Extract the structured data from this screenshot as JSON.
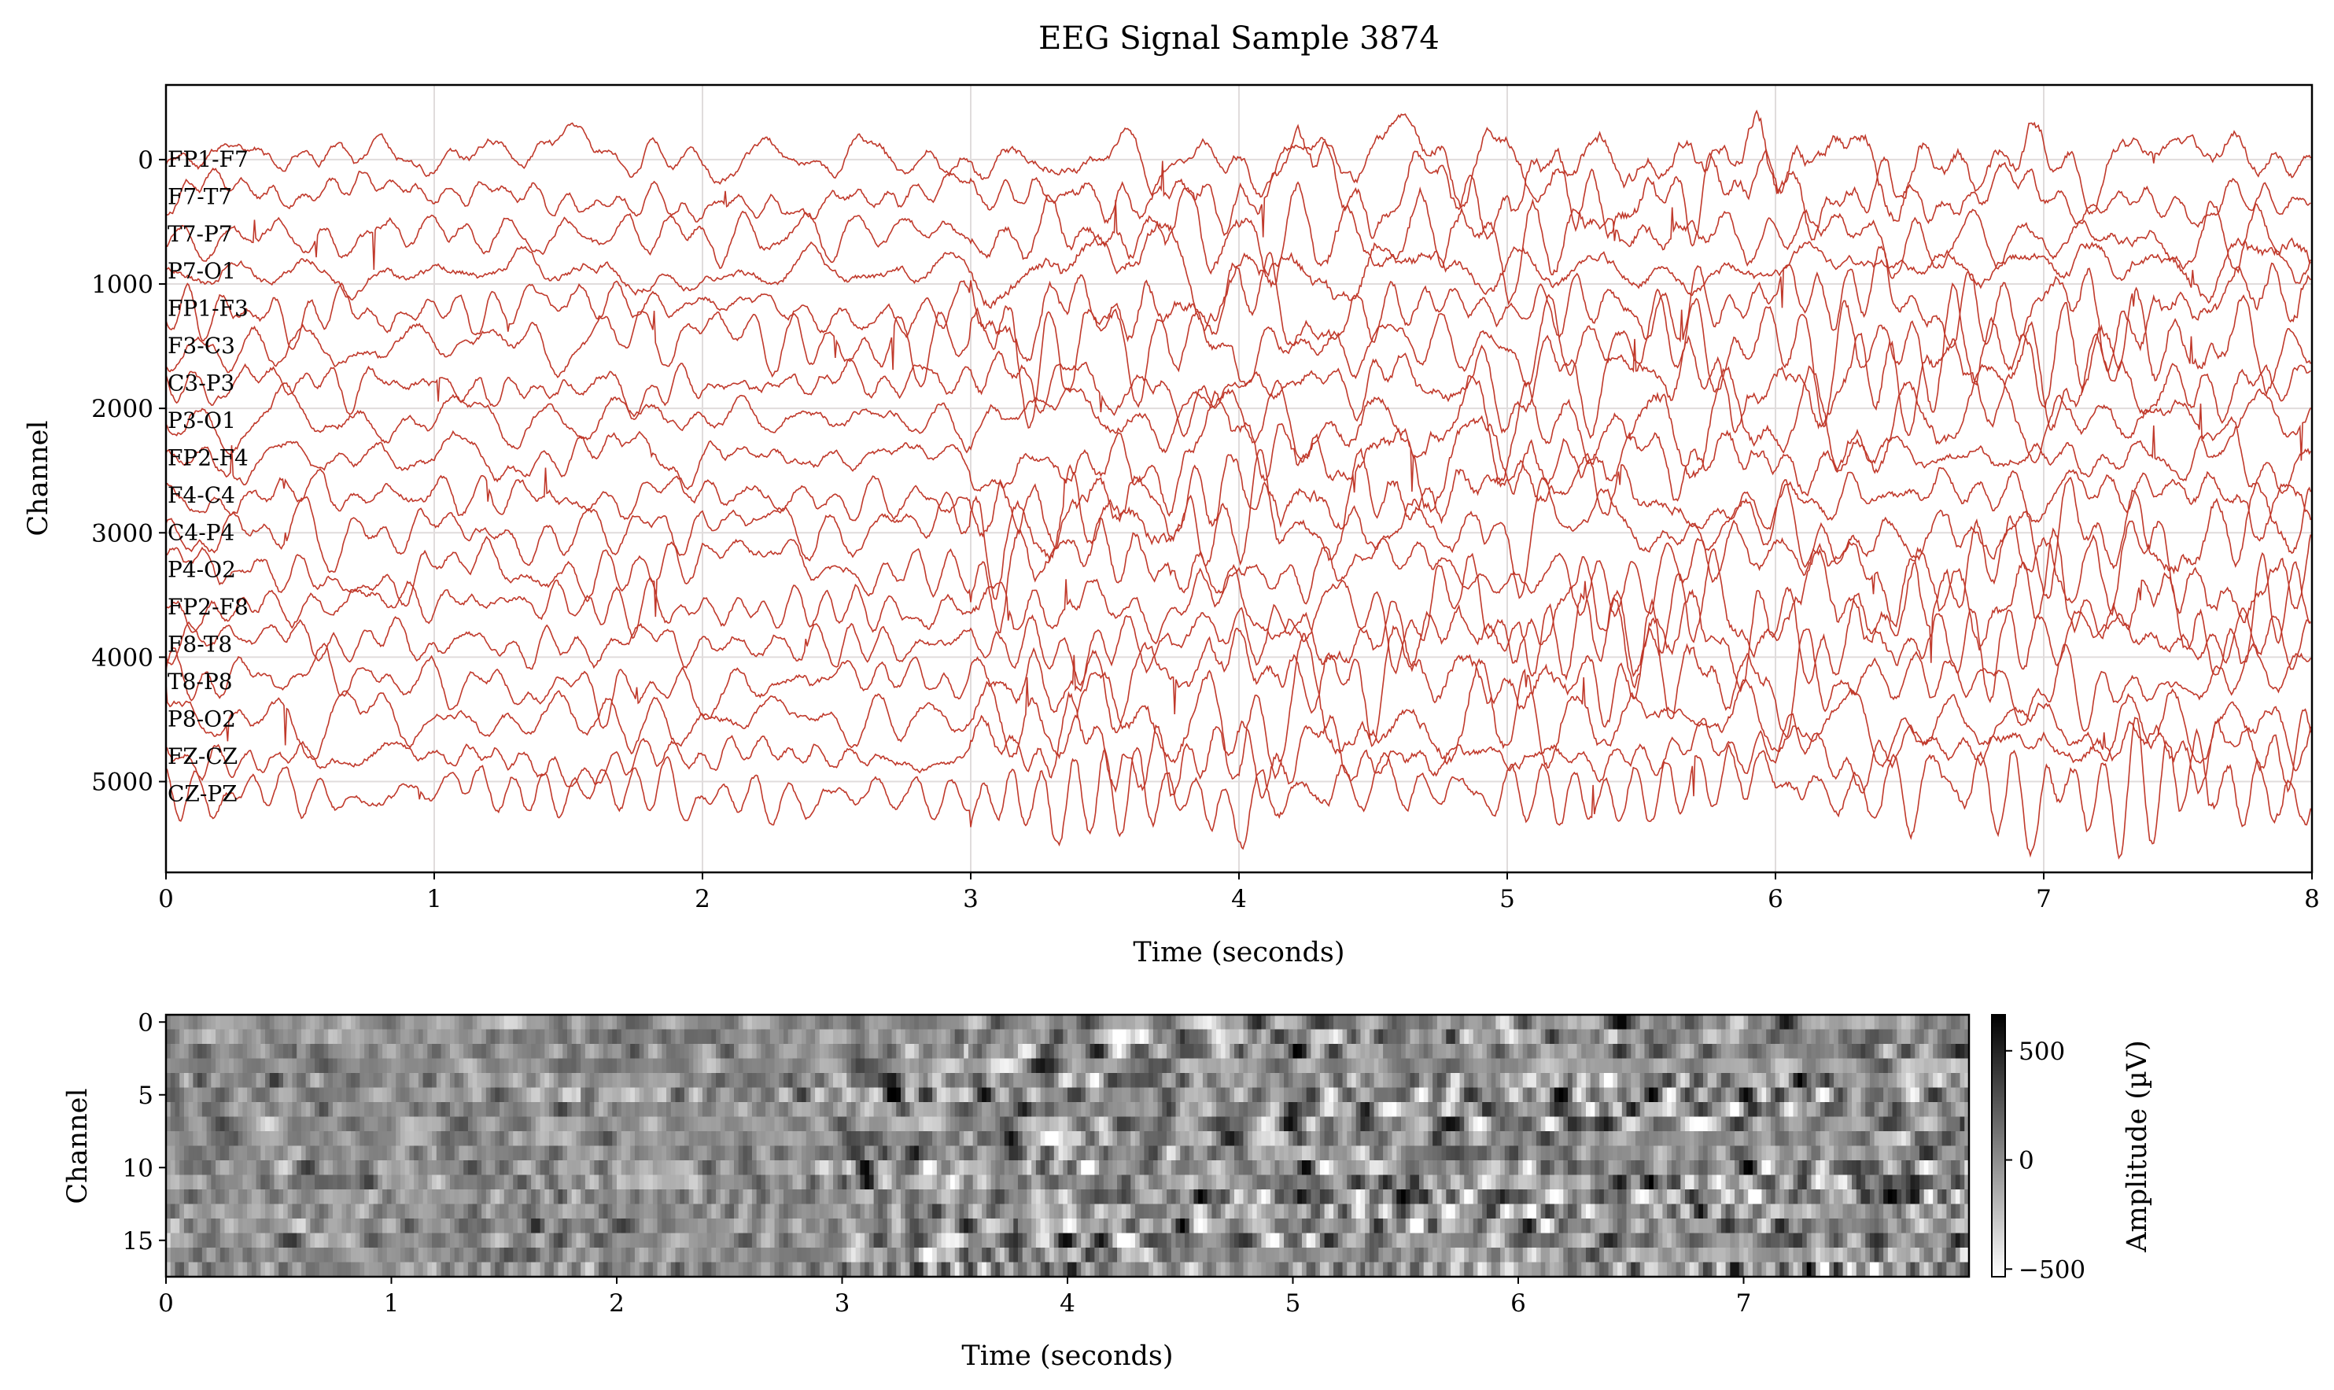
{
  "title": "EEG Signal Sample 3874",
  "colors": {
    "trace": "#c0392b",
    "grid": "#e0dcdc",
    "colormap": "gray_r"
  },
  "chart_data": [
    {
      "type": "line",
      "xlabel": "Time (seconds)",
      "ylabel": "Channel",
      "xlim": [
        0,
        8
      ],
      "ylim": [
        5730,
        -600
      ],
      "y_inverted": true,
      "grid": true,
      "xticks": [
        "0",
        "1",
        "2",
        "3",
        "4",
        "5",
        "6",
        "7",
        "8"
      ],
      "yticks": [
        "0",
        "1000",
        "2000",
        "3000",
        "4000",
        "5000"
      ],
      "ytick_values": [
        0,
        1000,
        2000,
        3000,
        4000,
        5000
      ],
      "channel_offset_step": 300,
      "channels": [
        "FP1-F7",
        "F7-T7",
        "T7-P7",
        "P7-O1",
        "FP1-F3",
        "F3-C3",
        "C3-P3",
        "P3-O1",
        "FP2-F4",
        "F4-C4",
        "C4-P4",
        "P4-O2",
        "FP2-F8",
        "F8-T8",
        "T8-P8",
        "P8-O2",
        "FZ-CZ",
        "CZ-PZ"
      ]
    },
    {
      "type": "heatmap",
      "xlabel": "Time (seconds)",
      "ylabel": "Channel",
      "xlim": [
        0,
        8
      ],
      "xticks": [
        "0",
        "1",
        "2",
        "3",
        "4",
        "5",
        "6",
        "7"
      ],
      "yticks": [
        "0",
        "5",
        "10",
        "15"
      ],
      "ytick_values": [
        0,
        5,
        10,
        15
      ],
      "colorbar": {
        "label": "Amplitude (µV)",
        "range": [
          -535,
          665
        ],
        "ticks": [
          "500",
          "0",
          "−500"
        ],
        "tick_values": [
          500,
          0,
          -500
        ]
      }
    }
  ]
}
